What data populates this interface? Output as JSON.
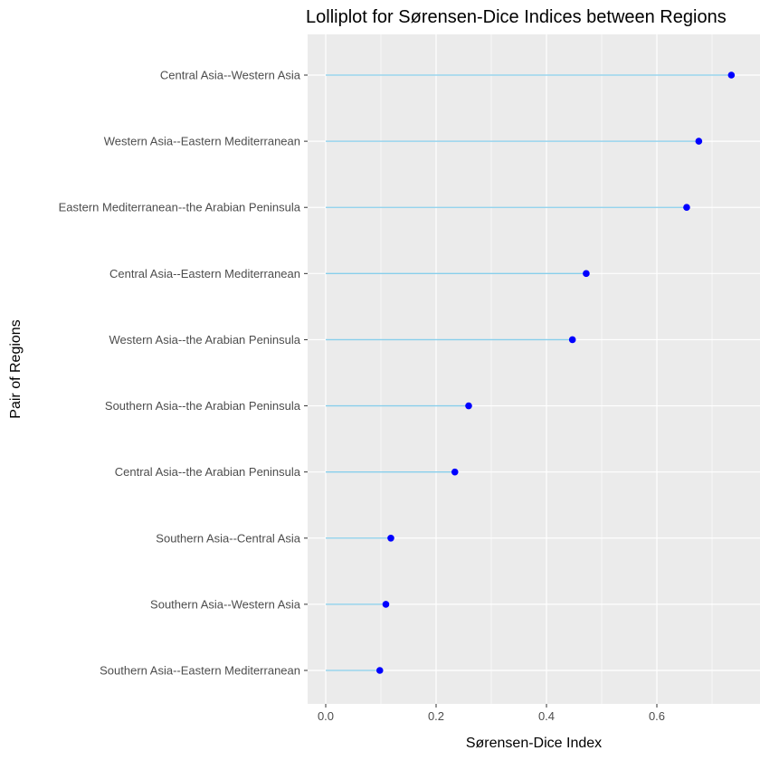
{
  "chart_data": {
    "type": "lollipop",
    "title": "Lolliplot for Sørensen-Dice Indices between Regions",
    "xlabel": "Sørensen-Dice Index",
    "ylabel": "Pair of Regions",
    "xlim": [
      -0.03,
      0.77
    ],
    "xticks": [
      "0.0",
      "0.2",
      "0.4",
      "0.6"
    ],
    "xtick_values": [
      0.0,
      0.2,
      0.4,
      0.6
    ],
    "categories": [
      "Central Asia--Western Asia",
      "Western Asia--Eastern Mediterranean",
      "Eastern Mediterranean--the Arabian Peninsula",
      "Central Asia--Eastern Mediterranean",
      "Western Asia--the Arabian Peninsula",
      "Southern Asia--the Arabian Peninsula",
      "Central Asia--the Arabian Peninsula",
      "Southern Asia--Central Asia",
      "Southern Asia--Western Asia",
      "Southern Asia--Eastern Mediterranean"
    ],
    "values": [
      0.735,
      0.676,
      0.654,
      0.472,
      0.447,
      0.259,
      0.234,
      0.118,
      0.109,
      0.098
    ],
    "grid": true,
    "legend": "none",
    "colors": {
      "stem": "#87ceeb",
      "point": "#0000ff",
      "panel": "#ebebeb",
      "grid": "#ffffff"
    }
  }
}
